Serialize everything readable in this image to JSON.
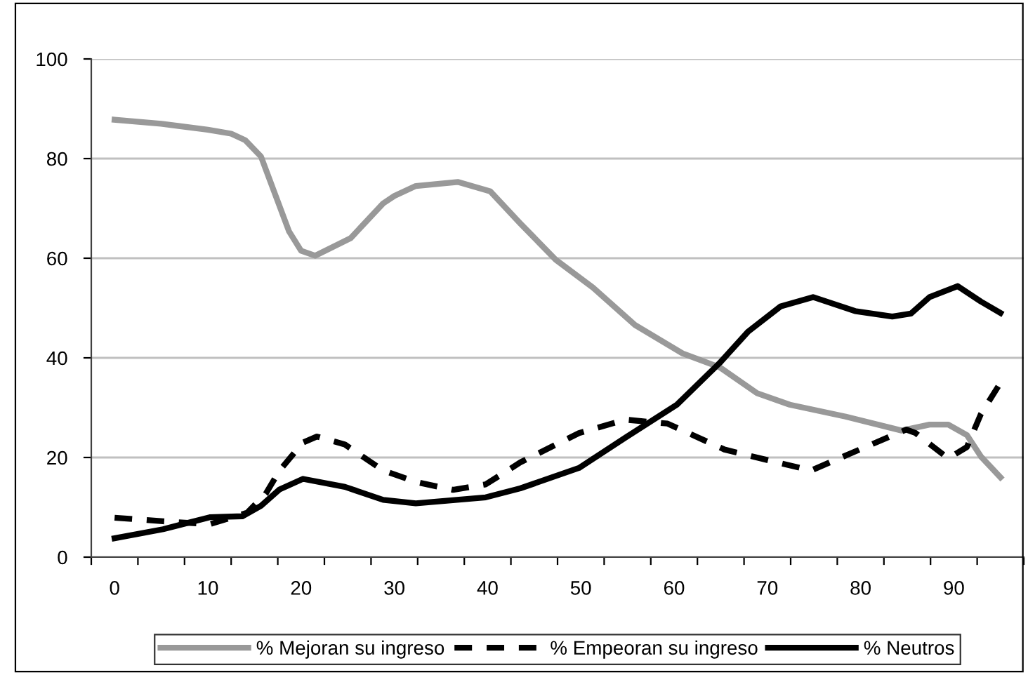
{
  "chart_data": {
    "type": "line",
    "xlim": [
      -2.5,
      97.5
    ],
    "ylim": [
      0,
      100
    ],
    "yticks": [
      0,
      20,
      40,
      60,
      80,
      100
    ],
    "xticks": [
      {
        "value": -2.5,
        "label": null
      },
      {
        "value": 0,
        "label": "0"
      },
      {
        "value": 2.5,
        "label": null
      },
      {
        "value": 7.5,
        "label": null
      },
      {
        "value": 10,
        "label": "10"
      },
      {
        "value": 12.5,
        "label": null
      },
      {
        "value": 17.5,
        "label": null
      },
      {
        "value": 20,
        "label": "20"
      },
      {
        "value": 22.5,
        "label": null
      },
      {
        "value": 27.5,
        "label": null
      },
      {
        "value": 30,
        "label": "30"
      },
      {
        "value": 32.5,
        "label": null
      },
      {
        "value": 37.5,
        "label": null
      },
      {
        "value": 40,
        "label": "40"
      },
      {
        "value": 42.5,
        "label": null
      },
      {
        "value": 47.5,
        "label": null
      },
      {
        "value": 50,
        "label": "50"
      },
      {
        "value": 52.5,
        "label": null
      },
      {
        "value": 57.5,
        "label": null
      },
      {
        "value": 60,
        "label": "60"
      },
      {
        "value": 62.5,
        "label": null
      },
      {
        "value": 67.5,
        "label": null
      },
      {
        "value": 70,
        "label": "70"
      },
      {
        "value": 72.5,
        "label": null
      },
      {
        "value": 77.5,
        "label": null
      },
      {
        "value": 80,
        "label": "80"
      },
      {
        "value": 82.5,
        "label": null
      },
      {
        "value": 87.5,
        "label": null
      },
      {
        "value": 90,
        "label": "90"
      },
      {
        "value": 92.5,
        "label": null
      },
      {
        "value": 97.5,
        "label": null
      }
    ],
    "grid": "y",
    "legend": "bottom",
    "marker": "none",
    "series": [
      {
        "name": "% Mejoran su ingreso",
        "color": "#999999",
        "line_style": "solid",
        "x": [
          0,
          5,
          10,
          12.5,
          14,
          15.7,
          17.2,
          18.7,
          20,
          21.5,
          25.3,
          28.8,
          30,
          32.3,
          36.8,
          40.3,
          43.5,
          47.3,
          51.3,
          55.8,
          60.9,
          64.9,
          68.9,
          72.4,
          78.4,
          84.4,
          87.4,
          89.4,
          91.4,
          92.9,
          95
        ],
        "values": [
          87.8,
          87,
          85.8,
          85,
          83.7,
          80.4,
          72.9,
          65.4,
          61.5,
          60.5,
          64,
          71,
          72.5,
          74.5,
          75.3,
          73.4,
          67,
          59.7,
          54.1,
          46.6,
          40.9,
          38.1,
          32.9,
          30.6,
          28.2,
          25.4,
          26.6,
          26.6,
          24.5,
          20.2,
          16
        ]
      },
      {
        "name": "% Empeoran su ingreso",
        "color": "#000000",
        "line_style": "dashed",
        "x": [
          0,
          5.2,
          10.2,
          14.2,
          16.2,
          17.7,
          20.2,
          21.7,
          24.7,
          28.8,
          32.3,
          36.3,
          39.8,
          43.5,
          49.8,
          54.8,
          59.3,
          65.4,
          70.4,
          74.7,
          79.9,
          84.9,
          85.9,
          89.4,
          91.4,
          92.9,
          95
        ],
        "values": [
          7.9,
          7.2,
          6.6,
          8.9,
          12.7,
          17.4,
          23,
          24.2,
          22.6,
          17.4,
          15.1,
          13.5,
          14.6,
          19,
          24.9,
          27.6,
          26.8,
          21.6,
          19.3,
          17.4,
          21.6,
          25.6,
          24.9,
          19.8,
          22.1,
          28.7,
          35
        ]
      },
      {
        "name": "% Neutros",
        "color": "#000000",
        "line_style": "solid",
        "x": [
          0,
          5.2,
          10.2,
          13.7,
          15.7,
          17.7,
          20.2,
          24.7,
          28.8,
          32.3,
          39.8,
          43.5,
          49.8,
          54.8,
          60.3,
          64.9,
          67.9,
          71.4,
          74.9,
          79.4,
          83.4,
          85.4,
          87.4,
          90.4,
          92.9,
          95
        ],
        "values": [
          3.8,
          5.6,
          8,
          8.2,
          10.3,
          13.6,
          15.7,
          14.1,
          11.5,
          10.8,
          12,
          13.8,
          17.9,
          24,
          30.6,
          39,
          45.2,
          50.3,
          52.2,
          49.4,
          48.3,
          48.9,
          52.2,
          54.4,
          51.3,
          49
        ]
      }
    ]
  }
}
